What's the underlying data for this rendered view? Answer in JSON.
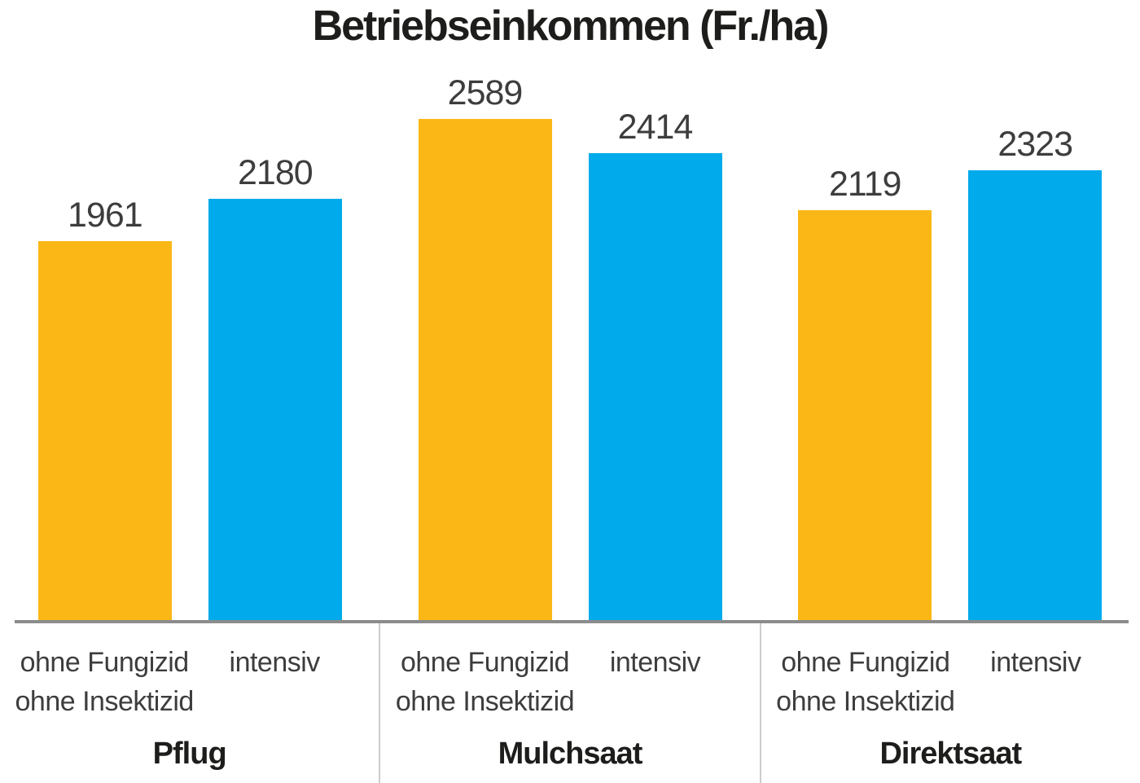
{
  "chart_data": {
    "type": "bar",
    "title": "Betriebseinkommen (Fr./ha)",
    "xlabel": "",
    "ylabel": "",
    "categories": [
      "Pflug",
      "Mulchsaat",
      "Direktsaat"
    ],
    "series": [
      {
        "name": "ohne Fungizid ohne Insektizid",
        "label_lines": [
          "ohne Fungizid",
          "ohne Insektizid"
        ],
        "color": "#FBB715",
        "values": [
          1961,
          2589,
          2119
        ]
      },
      {
        "name": "intensiv",
        "label_lines": [
          "intensiv"
        ],
        "color": "#00AAEB",
        "values": [
          2180,
          2414,
          2323
        ]
      }
    ],
    "value_labels_shown": true,
    "ylim": [
      0,
      2700
    ],
    "grid": false,
    "legend_position": "labels-below-bars",
    "axis_line_color": "#8C8C8C",
    "divider_color": "#CCCCCC",
    "text_color": "#3D3D3D"
  }
}
